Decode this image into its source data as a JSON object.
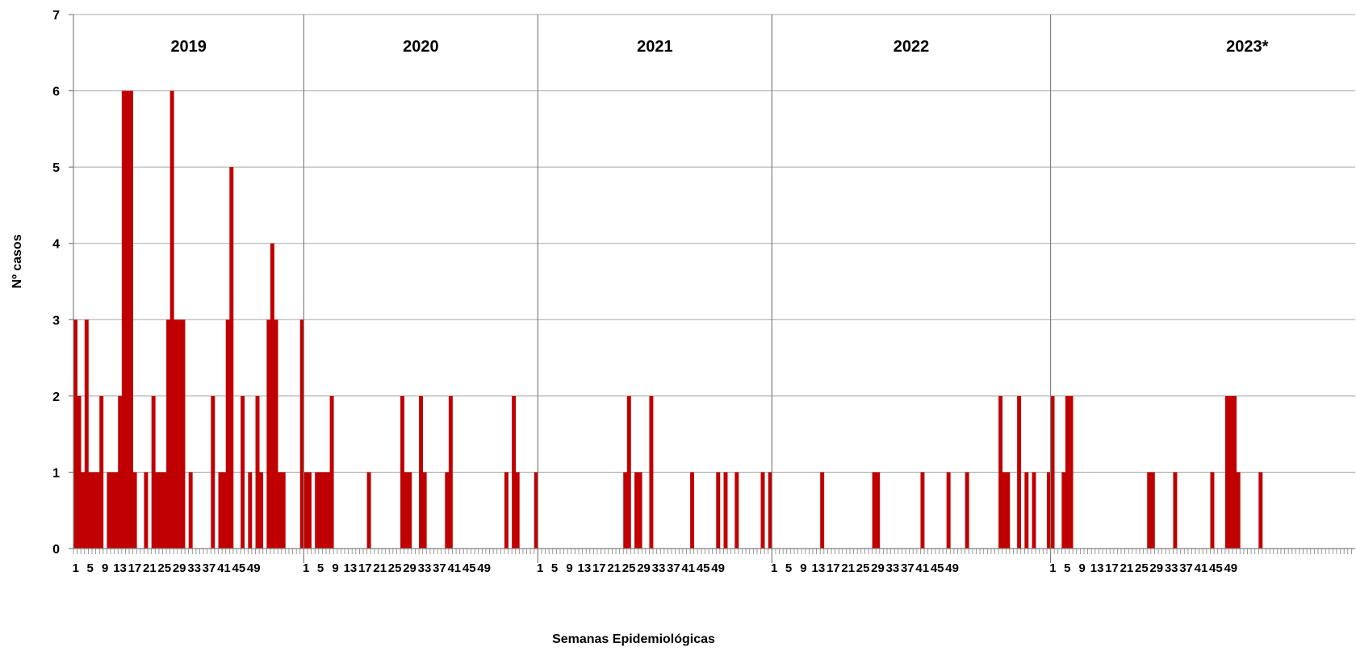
{
  "chart_data": {
    "type": "bar",
    "title": "",
    "xlabel": "Semanas Epidemiológicas",
    "ylabel": "Nº casos",
    "ylim": [
      0,
      7
    ],
    "y_ticks": [
      0,
      1,
      2,
      3,
      4,
      5,
      6,
      7
    ],
    "grid": "horizontal",
    "color": "#c00000",
    "x_tick_labels": [
      "1",
      "5",
      "9",
      "13",
      "17",
      "21",
      "25",
      "29",
      "33",
      "37",
      "41",
      "45",
      "49"
    ],
    "years": [
      {
        "label": "2019",
        "values": [
          3,
          2,
          1,
          3,
          1,
          1,
          1,
          2,
          0,
          1,
          1,
          1,
          2,
          6,
          6,
          6,
          1,
          0,
          0,
          1,
          0,
          2,
          1,
          1,
          1,
          3,
          6,
          3,
          3,
          3,
          0,
          1,
          0,
          0,
          0,
          0,
          0,
          2,
          0,
          1,
          1,
          3,
          5,
          0,
          0,
          2,
          0,
          1,
          0,
          2,
          1,
          0,
          3,
          4,
          3,
          1,
          1,
          0,
          0,
          0,
          0,
          3
        ]
      },
      {
        "label": "2020",
        "values": [
          1,
          1,
          0,
          1,
          1,
          1,
          1,
          2,
          0,
          0,
          0,
          0,
          0,
          0,
          0,
          0,
          0,
          1,
          0,
          0,
          0,
          0,
          0,
          0,
          0,
          0,
          2,
          1,
          1,
          0,
          0,
          2,
          1,
          0,
          0,
          0,
          0,
          0,
          1,
          2,
          0,
          0,
          0,
          0,
          0,
          0,
          0,
          0,
          0,
          0,
          0,
          0,
          0,
          0,
          1,
          0,
          2,
          1,
          0,
          0,
          0,
          0,
          1
        ]
      },
      {
        "label": "2021",
        "values": [
          0,
          0,
          0,
          0,
          0,
          0,
          0,
          0,
          0,
          0,
          0,
          0,
          0,
          0,
          0,
          0,
          0,
          0,
          0,
          0,
          0,
          0,
          0,
          1,
          2,
          0,
          1,
          1,
          0,
          0,
          2,
          0,
          0,
          0,
          0,
          0,
          0,
          0,
          0,
          0,
          0,
          1,
          0,
          0,
          0,
          0,
          0,
          0,
          1,
          0,
          1,
          0,
          0,
          1,
          0,
          0,
          0,
          0,
          0,
          0,
          1,
          0,
          1
        ]
      },
      {
        "label": "2022",
        "values": [
          0,
          0,
          0,
          0,
          0,
          0,
          0,
          0,
          0,
          0,
          0,
          0,
          0,
          1,
          0,
          0,
          0,
          0,
          0,
          0,
          0,
          0,
          0,
          0,
          0,
          0,
          0,
          1,
          1,
          0,
          0,
          0,
          0,
          0,
          0,
          0,
          0,
          0,
          0,
          0,
          1,
          0,
          0,
          0,
          0,
          0,
          0,
          1,
          0,
          0,
          0,
          0,
          1,
          0,
          0,
          0,
          0,
          0,
          0,
          0,
          0,
          2,
          1,
          1,
          0,
          0,
          2,
          0,
          1,
          0,
          1,
          0,
          0,
          0,
          1
        ]
      },
      {
        "label": "2023*",
        "values": [
          2,
          0,
          0,
          1,
          2,
          2,
          0,
          0,
          0,
          0,
          0,
          0,
          0,
          0,
          0,
          0,
          0,
          0,
          0,
          0,
          0,
          0,
          0,
          0,
          0,
          0,
          1,
          1,
          0,
          0,
          0,
          0,
          0,
          1,
          0,
          0,
          0,
          0,
          0,
          0,
          0,
          0,
          0,
          1,
          0,
          0,
          0,
          2,
          2,
          2,
          1,
          0,
          0,
          0,
          0,
          0,
          1,
          0,
          0,
          0,
          0,
          0,
          0,
          0,
          0,
          0,
          0,
          0,
          0,
          0,
          0,
          0,
          0,
          0,
          0,
          0,
          0,
          0,
          0,
          0,
          0,
          0
        ]
      }
    ]
  }
}
